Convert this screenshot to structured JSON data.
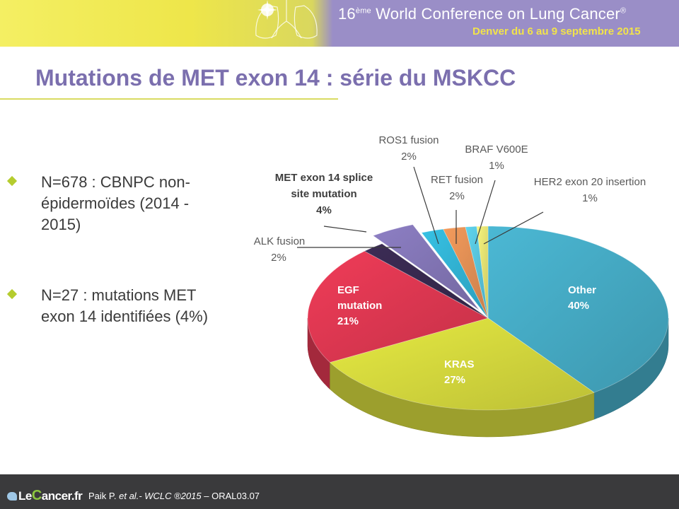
{
  "header": {
    "ordinal": "16",
    "ordinal_suffix": "ème",
    "title": " World Conference on Lung Cancer",
    "registered": "®",
    "subtitle": "Denver du 6 au 9 septembre 2015"
  },
  "slide": {
    "title": "Mutations de MET exon 14 : série du MSKCC",
    "bullets": [
      "N=678 : CBNPC non-épidermoïdes (2014 - 2015)",
      "N=27 : mutations MET exon 14 identifiées (4%)"
    ]
  },
  "footer": {
    "logo_prefix": "Le",
    "logo_c": "C",
    "logo_rest": "ancer.fr",
    "citation_author": "Paik P. ",
    "citation_etal": "et al.",
    "citation_journal": "- WCLC ®2015",
    "citation_rest": " – ORAL03.07"
  },
  "colors": {
    "header_yellow": "#eee64a",
    "header_purple": "#9a8ec7",
    "title_purple": "#7b6fae",
    "bullet_green": "#b5cc2e",
    "footer_dark": "#3a3a3c"
  },
  "chart_data": {
    "type": "pie",
    "title": "",
    "slices": [
      {
        "name": "Other",
        "value": 40,
        "label": "40%",
        "color": "#4bb8d4",
        "bold": true
      },
      {
        "name": "KRAS",
        "value": 27,
        "label": "27%",
        "color": "#e6ea42",
        "bold": true
      },
      {
        "name": "EGF mutation",
        "value": 21,
        "label": "21%",
        "color": "#f03c58",
        "bold": true
      },
      {
        "name": "ALK fusion",
        "value": 2,
        "label": "2%",
        "color": "#3c2c55",
        "bold": false
      },
      {
        "name": "MET exon 14 splice site mutation",
        "value": 4,
        "label": "4%",
        "color": "#8d7fc4",
        "bold": true
      },
      {
        "name": "ROS1 fusion",
        "value": 2,
        "label": "2%",
        "color": "#36c1e4",
        "bold": false
      },
      {
        "name": "RET fusion",
        "value": 2,
        "label": "2%",
        "color": "#f49b5c",
        "bold": false
      },
      {
        "name": "BRAF V600E",
        "value": 1,
        "label": "1%",
        "color": "#5fd4ee",
        "bold": false
      },
      {
        "name": "HER2 exon 20 insertion",
        "value": 1,
        "label": "1%",
        "color": "#f8f57c",
        "bold": false
      }
    ]
  }
}
